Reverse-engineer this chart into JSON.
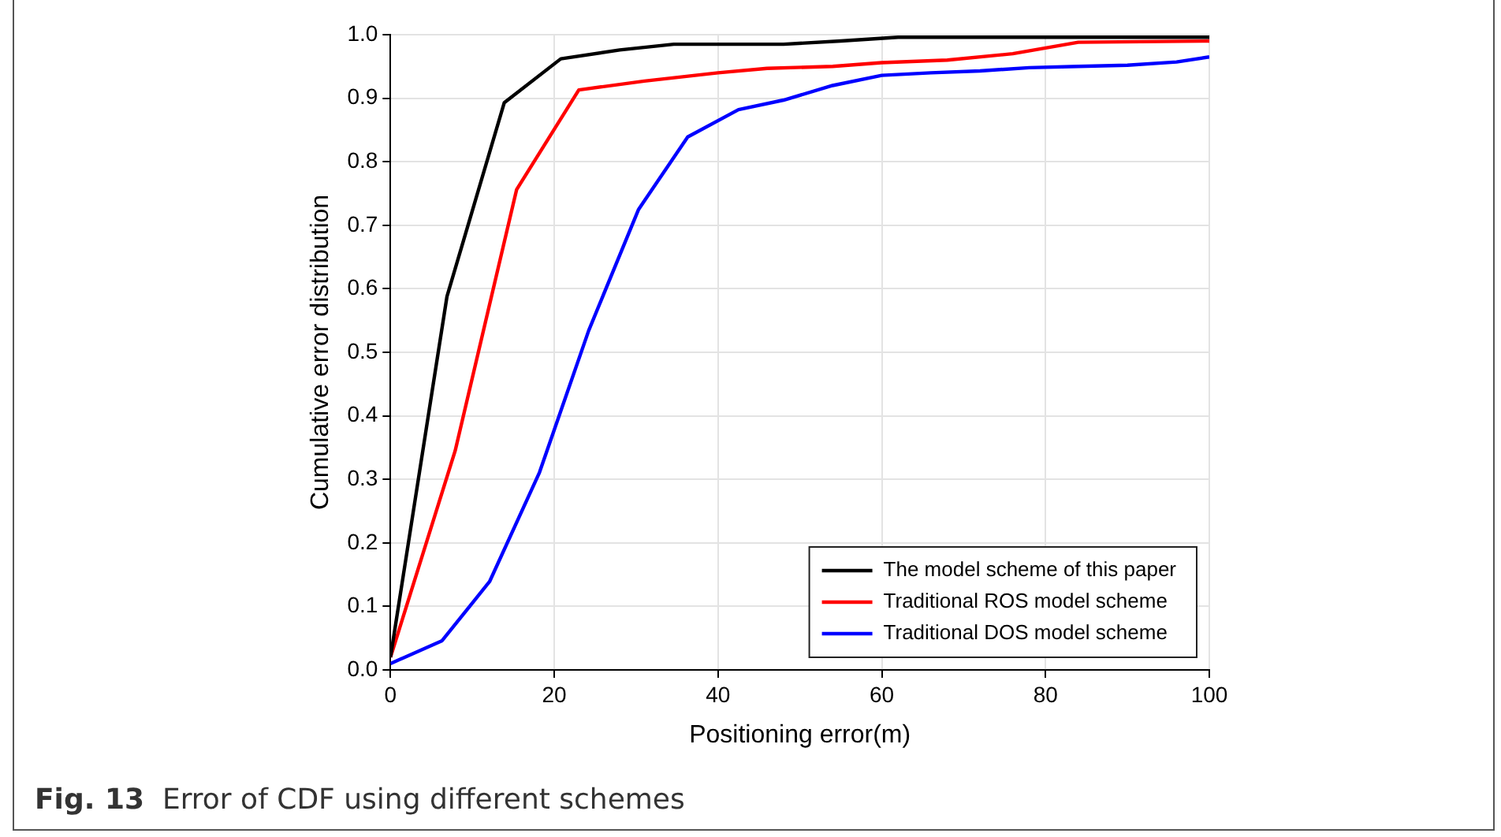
{
  "chart_data": {
    "type": "line",
    "xlabel": "Positioning error(m)",
    "ylabel": "Cumulative error distribution",
    "xlim": [
      0,
      100
    ],
    "xticks": [
      0,
      20,
      40,
      60,
      80,
      100
    ],
    "ylim": [
      0,
      1
    ],
    "yticks": [
      {
        "value": 0,
        "label": "0.0"
      },
      {
        "value": 0.1,
        "label": "0.1"
      },
      {
        "value": 0.2,
        "label": "0.2"
      },
      {
        "value": 0.3,
        "label": "0.3"
      },
      {
        "value": 0.4,
        "label": "0.4"
      },
      {
        "value": 0.5,
        "label": "0.5"
      },
      {
        "value": 0.6,
        "label": "0.6"
      },
      {
        "value": 0.7,
        "label": "0.7"
      },
      {
        "value": 0.8,
        "label": "0.8"
      },
      {
        "value": 0.9,
        "label": "0.9"
      },
      {
        "value": 1,
        "label": "1.0"
      }
    ],
    "grid": true,
    "legend": "bottom right",
    "marker": "none",
    "line_style": "solid",
    "annotations": [
      "Fig. 13  Error of CDF using different schemes"
    ],
    "series": [
      {
        "name": "The model scheme of this paper",
        "color": "#000000",
        "x": [
          0,
          6.9,
          13.9,
          20.8,
          28,
          34.6,
          48,
          55,
          62,
          100
        ],
        "values": [
          0.02,
          0.588,
          0.893,
          0.962,
          0.976,
          0.985,
          0.985,
          0.99,
          0.996,
          0.996
        ]
      },
      {
        "name": "Traditional ROS model scheme",
        "color": "#ff0000",
        "x": [
          0,
          7.9,
          15.4,
          23,
          31,
          40,
          46,
          54,
          60,
          68,
          76,
          84,
          100
        ],
        "values": [
          0.02,
          0.345,
          0.756,
          0.913,
          0.927,
          0.94,
          0.947,
          0.95,
          0.956,
          0.96,
          0.97,
          0.988,
          0.99
        ]
      },
      {
        "name": "Traditional DOS model scheme",
        "color": "#0000ff",
        "x": [
          0,
          6.3,
          12.1,
          18.2,
          24.2,
          30.3,
          36.3,
          42.5,
          48,
          54,
          60,
          66,
          72,
          78,
          84,
          90,
          96,
          100
        ],
        "values": [
          0.01,
          0.046,
          0.139,
          0.311,
          0.534,
          0.725,
          0.839,
          0.882,
          0.897,
          0.92,
          0.936,
          0.94,
          0.943,
          0.948,
          0.95,
          0.952,
          0.957,
          0.965
        ]
      }
    ]
  }
}
